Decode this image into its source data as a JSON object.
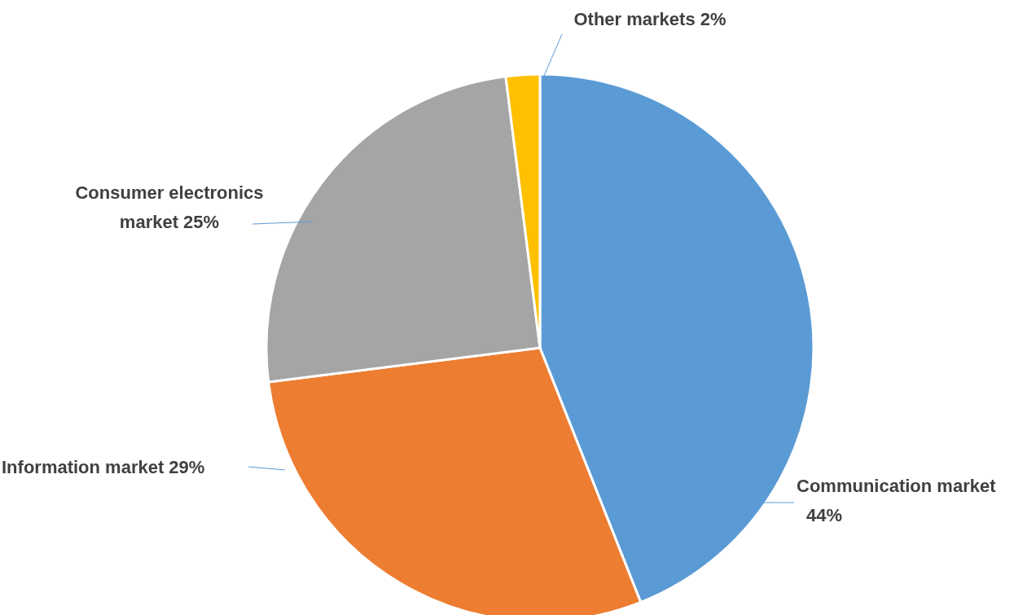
{
  "chart_data": {
    "type": "pie",
    "categories": [
      "Communication market",
      "Information market",
      "Consumer electronics market",
      "Other markets"
    ],
    "values": [
      44,
      29,
      25,
      2
    ],
    "value_labels": [
      "44%",
      "29%",
      "25%",
      "2%"
    ],
    "colors": [
      "#5b9bd5",
      "#ed7d31",
      "#a5a5a5",
      "#ffc000"
    ],
    "legend": false
  }
}
